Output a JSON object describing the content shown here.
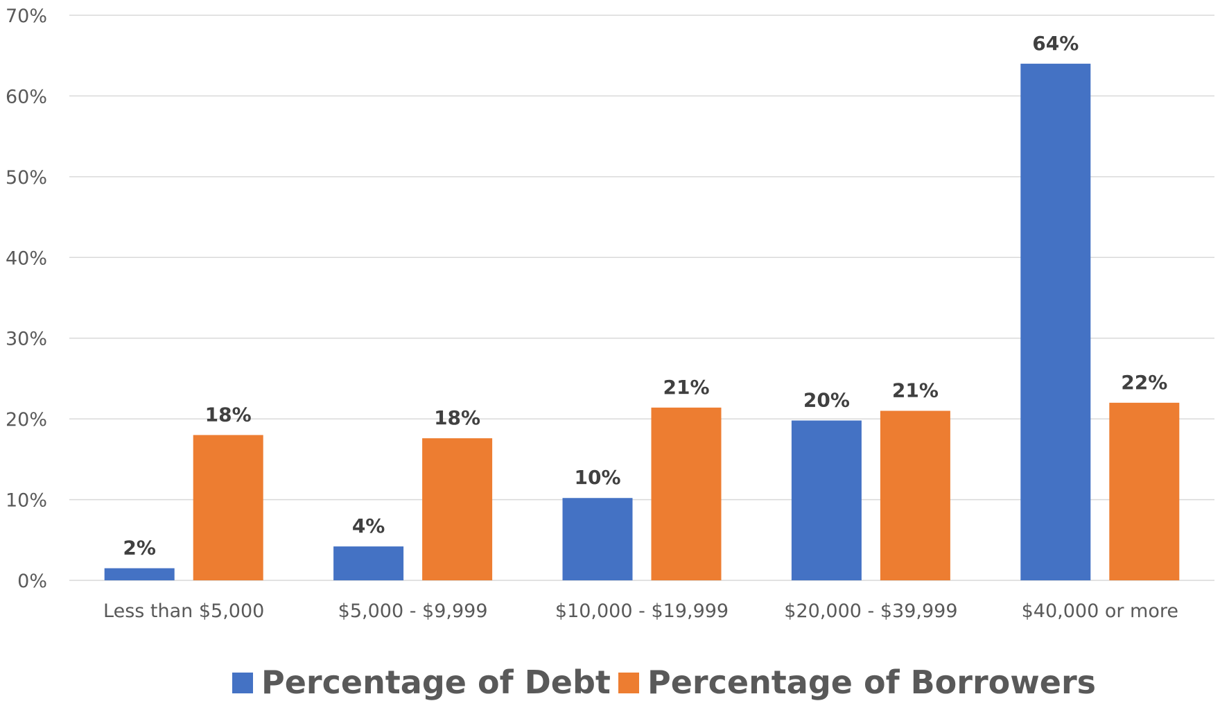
{
  "chart_data": {
    "type": "bar",
    "categories": [
      "Less than $5,000",
      "$5,000 - $9,999",
      "$10,000 - $19,999",
      "$20,000 - $39,999",
      "$40,000 or more"
    ],
    "series": [
      {
        "name": "Percentage of Debt",
        "values": [
          1.5,
          4.2,
          10.2,
          19.8,
          64.0
        ],
        "labels": [
          "2%",
          "4%",
          "10%",
          "20%",
          "64%"
        ],
        "color": "#4472C4"
      },
      {
        "name": "Percentage of Borrowers",
        "values": [
          18.0,
          17.6,
          21.4,
          21.0,
          22.0
        ],
        "labels": [
          "18%",
          "18%",
          "21%",
          "21%",
          "22%"
        ],
        "color": "#ED7D31"
      }
    ],
    "yticks": [
      "0%",
      "10%",
      "20%",
      "30%",
      "40%",
      "50%",
      "60%",
      "70%"
    ],
    "ylim": [
      0,
      70
    ],
    "grid": true,
    "legend_position": "bottom"
  }
}
